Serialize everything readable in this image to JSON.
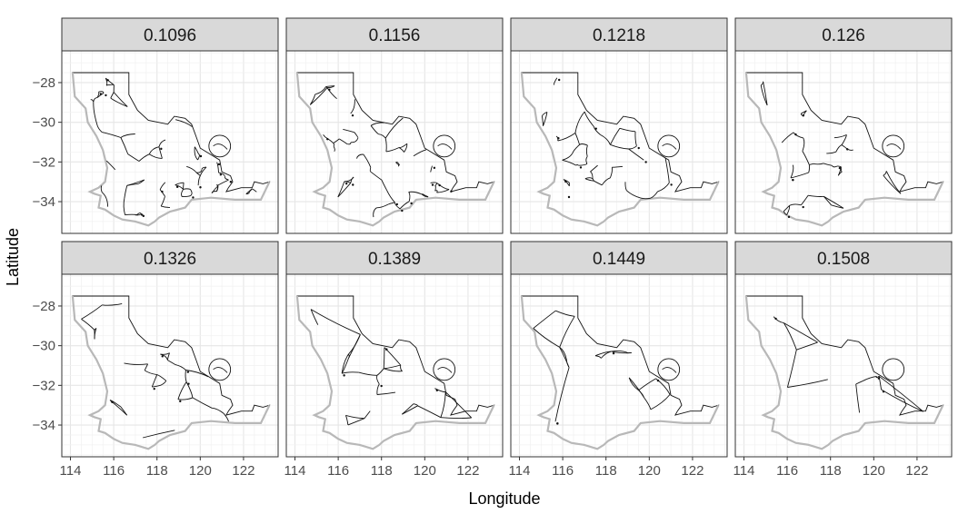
{
  "chart_data": {
    "type": "faceted-map",
    "xlabel": "Longitude",
    "ylabel": "Latitude",
    "xticks": [
      114,
      116,
      118,
      120,
      122
    ],
    "yticks": [
      -28,
      -30,
      -32,
      -34
    ],
    "xlim": [
      113.6,
      123.6
    ],
    "ylim": [
      -35.6,
      -26.4
    ],
    "grid": true,
    "facets": [
      "0.1096",
      "0.1156",
      "0.1218",
      "0.126",
      "0.1326",
      "0.1389",
      "0.1449",
      "0.1508"
    ],
    "layout": {
      "rows": 2,
      "cols": 4
    },
    "coastline": {
      "lon": [
        114.1,
        116.7,
        116.7,
        117.1,
        117.6,
        118.5,
        118.8,
        119.3,
        119.6,
        119.8,
        120.0,
        120.9,
        121.0,
        121.4,
        121.5,
        121.3,
        121.2,
        121.9,
        122.4,
        122.5,
        122.9,
        123.2,
        122.8,
        121.6,
        120.5,
        119.6,
        119.3,
        118.6,
        118.1,
        117.9,
        117.6,
        117.0,
        116.4,
        116.0,
        115.6,
        115.3,
        115.4,
        115.1,
        114.9,
        115.3,
        115.6,
        115.7,
        115.5,
        115.2,
        114.8,
        114.7,
        114.2,
        114.1
      ],
      "lat": [
        -27.5,
        -27.5,
        -28.6,
        -29.4,
        -29.9,
        -30.1,
        -29.7,
        -29.8,
        -30.1,
        -30.7,
        -31.3,
        -31.9,
        -32.5,
        -32.7,
        -33.0,
        -33.3,
        -33.5,
        -33.3,
        -33.3,
        -33.0,
        -33.1,
        -33.0,
        -33.9,
        -33.9,
        -33.8,
        -33.9,
        -34.3,
        -34.5,
        -34.8,
        -35.0,
        -35.2,
        -35.0,
        -34.9,
        -34.7,
        -34.4,
        -34.3,
        -33.7,
        -33.6,
        -33.5,
        -33.3,
        -33.0,
        -32.3,
        -31.4,
        -30.7,
        -30.0,
        -29.3,
        -28.7,
        -27.5
      ]
    },
    "ring_region": {
      "center_lon": 120.9,
      "center_lat": -31.2,
      "radius_deg": 0.5
    },
    "notes_none": ""
  }
}
